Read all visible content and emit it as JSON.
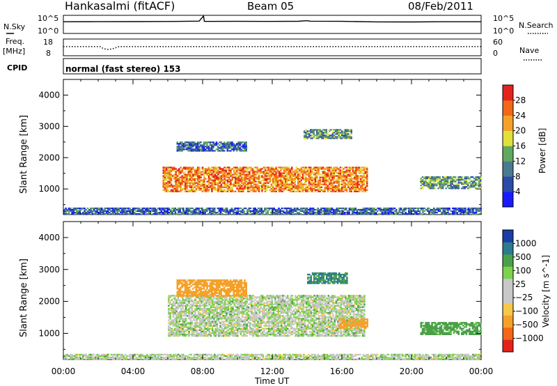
{
  "header": {
    "station": "Hankasalmi (fitACF)",
    "beam": "Beam 05",
    "date": "08/Feb/2011"
  },
  "strip_labels": {
    "nsky": "N.Sky",
    "nsky_top": "10^5",
    "nsky_bottom": "10^0",
    "nsearch": "N.Search",
    "nsearch_top": "10^5",
    "nsearch_bottom": "10^0",
    "freq": "Freq.",
    "freq_unit": "[MHz]",
    "freq_top": "18",
    "freq_bottom": "8",
    "nave": "Nave",
    "nave_top": "60",
    "nave_bottom": "0",
    "cpid": "CPID",
    "cpid_text": "normal (fast stereo) 153"
  },
  "x_axis": {
    "label": "Time UT",
    "ticks": [
      "00:00",
      "04:00",
      "08:00",
      "12:00",
      "16:00",
      "20:00",
      "00:00"
    ],
    "range_hours": [
      0,
      24
    ]
  },
  "colors": {
    "power": [
      "#1a1aff",
      "#2b4ba6",
      "#4a7a8f",
      "#5faa60",
      "#e2e03a",
      "#f4a12a",
      "#f26718",
      "#e3231b"
    ],
    "velocity_neg": [
      "#e3231b",
      "#f26718",
      "#f4a12a",
      "#f5c84a"
    ],
    "velocity_mid": "#c8c8c8",
    "velocity_pos": [
      "#7cd24a",
      "#4aa04a",
      "#2b7a8f",
      "#1a3da6"
    ],
    "ground_scatter": "#c8c8c8"
  },
  "chart_data": [
    {
      "type": "line",
      "title": "N.Sky / N.Search",
      "x_units": "hours UT",
      "xlim": [
        0,
        24
      ],
      "y_scale": "log",
      "ylim": [
        1,
        100000
      ],
      "series": [
        {
          "name": "N.Sky",
          "x": [
            0,
            2,
            4,
            6,
            7.8,
            8.05,
            8.1,
            10,
            12,
            13.5,
            14,
            14.2,
            16,
            18,
            20,
            22,
            24
          ],
          "y": [
            2000,
            2100,
            2200,
            2400,
            3000,
            100000,
            2500,
            2600,
            2500,
            2700,
            4000,
            2900,
            2600,
            1800,
            1700,
            2000,
            2000
          ]
        }
      ]
    },
    {
      "type": "line",
      "title": "Freq. / Nave",
      "x_units": "hours UT",
      "xlim": [
        0,
        24
      ],
      "ylim": [
        8,
        18
      ],
      "series": [
        {
          "name": "Freq.",
          "x": [
            0,
            2.1,
            2.3,
            2.6,
            2.9,
            3.2,
            24
          ],
          "y": [
            13.5,
            13.5,
            12.2,
            11.6,
            12.3,
            13.5,
            13.5
          ]
        },
        {
          "name": "Nave",
          "x": [
            0,
            24
          ],
          "y": [
            13.5,
            13.5
          ]
        }
      ]
    },
    {
      "type": "heatmap",
      "title": "Power",
      "xlabel": "Time UT",
      "ylabel": "Slant Range [km]",
      "xlim": [
        0,
        24
      ],
      "ylim": [
        180,
        4500
      ],
      "yticks": [
        1000,
        2000,
        3000,
        4000
      ],
      "colorbar": {
        "label": "Power [dB]",
        "ticks": [
          4,
          8,
          12,
          16,
          20,
          24,
          28
        ],
        "range": [
          0,
          32
        ]
      },
      "regions": [
        {
          "t0": 5.7,
          "t1": 17.4,
          "r0": 900,
          "r1": 1700,
          "level_db": 24
        },
        {
          "t0": 6.5,
          "t1": 10.5,
          "r0": 2200,
          "r1": 2500,
          "level_db": 8
        },
        {
          "t0": 13.8,
          "t1": 16.5,
          "r0": 2600,
          "r1": 2900,
          "level_db": 12
        },
        {
          "t0": 20.5,
          "t1": 24,
          "r0": 1000,
          "r1": 1400,
          "level_db": 12
        },
        {
          "t0": 0,
          "t1": 24,
          "r0": 180,
          "r1": 400,
          "level_db": 8
        }
      ]
    },
    {
      "type": "heatmap",
      "title": "Velocity",
      "xlabel": "Time UT",
      "ylabel": "Slant Range [km]",
      "xlim": [
        0,
        24
      ],
      "ylim": [
        180,
        4500
      ],
      "yticks": [
        1000,
        2000,
        3000,
        4000
      ],
      "colorbar": {
        "label": "Velocity [m s^-1]",
        "ticks": [
          1000,
          500,
          100,
          25,
          -25,
          -100,
          -500,
          -1000
        ]
      },
      "regions": [
        {
          "t0": 6,
          "t1": 17.3,
          "r0": 900,
          "r1": 2200,
          "velocity": 0
        },
        {
          "t0": 6.5,
          "t1": 10.5,
          "r0": 2150,
          "r1": 2650,
          "velocity": -200
        },
        {
          "t0": 14,
          "t1": 16.3,
          "r0": 2550,
          "r1": 2900,
          "velocity": 100
        },
        {
          "t0": 15.8,
          "t1": 17.5,
          "r0": 1150,
          "r1": 1450,
          "velocity": -150
        },
        {
          "t0": 20.5,
          "t1": 24,
          "r0": 950,
          "r1": 1350,
          "velocity": 50
        },
        {
          "t0": 0,
          "t1": 24,
          "r0": 180,
          "r1": 350,
          "velocity": 0
        }
      ]
    }
  ]
}
